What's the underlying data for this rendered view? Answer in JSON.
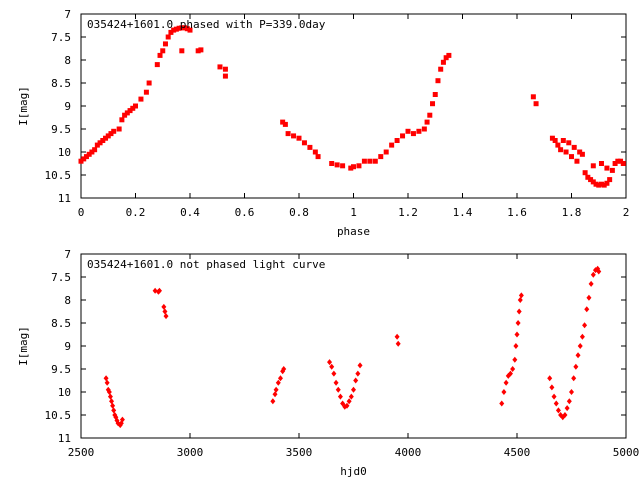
{
  "chart_data": [
    {
      "type": "scatter",
      "title": "035424+1601.0 phased with P=339.0day",
      "xlabel": "phase",
      "ylabel": "I[mag]",
      "xlim": [
        0,
        2
      ],
      "ylim": [
        7,
        11
      ],
      "y_reversed": true,
      "xticks": [
        "0",
        "0.2",
        "0.4",
        "0.6",
        "0.8",
        "1",
        "1.2",
        "1.4",
        "1.6",
        "1.8",
        "2"
      ],
      "yticks": [
        "7",
        "7.5",
        "8",
        "8.5",
        "9",
        "9.5",
        "10",
        "10.5",
        "11"
      ],
      "grid": false,
      "marker_color": "#ff0000",
      "series": [
        {
          "points": [
            [
              0.0,
              10.2
            ],
            [
              0.01,
              10.15
            ],
            [
              0.02,
              10.1
            ],
            [
              0.03,
              10.05
            ],
            [
              0.04,
              10.0
            ],
            [
              0.05,
              9.95
            ],
            [
              0.06,
              9.85
            ],
            [
              0.07,
              9.8
            ],
            [
              0.08,
              9.75
            ],
            [
              0.09,
              9.7
            ],
            [
              0.1,
              9.65
            ],
            [
              0.11,
              9.6
            ],
            [
              0.12,
              9.55
            ],
            [
              0.14,
              9.5
            ],
            [
              0.15,
              9.3
            ],
            [
              0.16,
              9.2
            ],
            [
              0.17,
              9.15
            ],
            [
              0.18,
              9.1
            ],
            [
              0.19,
              9.05
            ],
            [
              0.2,
              9.0
            ],
            [
              0.22,
              8.85
            ],
            [
              0.24,
              8.7
            ],
            [
              0.25,
              8.5
            ],
            [
              0.28,
              8.1
            ],
            [
              0.29,
              7.9
            ],
            [
              0.3,
              7.8
            ],
            [
              0.31,
              7.65
            ],
            [
              0.32,
              7.5
            ],
            [
              0.33,
              7.4
            ],
            [
              0.34,
              7.35
            ],
            [
              0.35,
              7.33
            ],
            [
              0.36,
              7.31
            ],
            [
              0.37,
              7.3
            ],
            [
              0.38,
              7.3
            ],
            [
              0.39,
              7.32
            ],
            [
              0.4,
              7.35
            ],
            [
              0.37,
              7.8
            ],
            [
              0.43,
              7.8
            ],
            [
              0.44,
              7.78
            ],
            [
              0.51,
              8.15
            ],
            [
              0.53,
              8.2
            ],
            [
              0.53,
              8.35
            ],
            [
              0.74,
              9.35
            ],
            [
              0.75,
              9.4
            ],
            [
              0.76,
              9.6
            ],
            [
              0.78,
              9.65
            ],
            [
              0.8,
              9.7
            ],
            [
              0.82,
              9.8
            ],
            [
              0.84,
              9.9
            ],
            [
              0.86,
              10.0
            ],
            [
              0.87,
              10.1
            ],
            [
              0.92,
              10.25
            ],
            [
              0.94,
              10.28
            ],
            [
              0.96,
              10.3
            ],
            [
              0.99,
              10.35
            ],
            [
              1.0,
              10.32
            ],
            [
              1.02,
              10.3
            ],
            [
              1.04,
              10.2
            ],
            [
              1.06,
              10.2
            ],
            [
              1.08,
              10.2
            ],
            [
              1.1,
              10.1
            ],
            [
              1.12,
              10.0
            ],
            [
              1.14,
              9.85
            ],
            [
              1.16,
              9.75
            ],
            [
              1.18,
              9.65
            ],
            [
              1.2,
              9.55
            ],
            [
              1.22,
              9.6
            ],
            [
              1.24,
              9.55
            ],
            [
              1.26,
              9.5
            ],
            [
              1.27,
              9.35
            ],
            [
              1.28,
              9.2
            ],
            [
              1.29,
              8.95
            ],
            [
              1.3,
              8.75
            ],
            [
              1.31,
              8.45
            ],
            [
              1.32,
              8.2
            ],
            [
              1.33,
              8.05
            ],
            [
              1.34,
              7.95
            ],
            [
              1.35,
              7.9
            ],
            [
              1.66,
              8.8
            ],
            [
              1.67,
              8.95
            ],
            [
              1.73,
              9.7
            ],
            [
              1.74,
              9.75
            ],
            [
              1.75,
              9.85
            ],
            [
              1.76,
              9.95
            ],
            [
              1.77,
              9.75
            ],
            [
              1.78,
              10.0
            ],
            [
              1.79,
              9.8
            ],
            [
              1.8,
              10.1
            ],
            [
              1.81,
              9.9
            ],
            [
              1.82,
              10.2
            ],
            [
              1.83,
              10.0
            ],
            [
              1.84,
              10.05
            ],
            [
              1.85,
              10.45
            ],
            [
              1.86,
              10.55
            ],
            [
              1.87,
              10.6
            ],
            [
              1.88,
              10.65
            ],
            [
              1.89,
              10.7
            ],
            [
              1.9,
              10.72
            ],
            [
              1.91,
              10.7
            ],
            [
              1.92,
              10.72
            ],
            [
              1.93,
              10.68
            ],
            [
              1.94,
              10.6
            ],
            [
              1.95,
              10.4
            ],
            [
              1.96,
              10.25
            ],
            [
              1.97,
              10.2
            ],
            [
              1.98,
              10.2
            ],
            [
              1.99,
              10.25
            ],
            [
              1.93,
              10.35
            ],
            [
              1.88,
              10.3
            ],
            [
              1.91,
              10.25
            ]
          ]
        }
      ]
    },
    {
      "type": "scatter",
      "title": "035424+1601.0 not phased light curve",
      "xlabel": "hjd0",
      "ylabel": "I[mag]",
      "xlim": [
        2500,
        5000
      ],
      "ylim": [
        7,
        11
      ],
      "y_reversed": true,
      "xticks": [
        "2500",
        "3000",
        "3500",
        "4000",
        "4500",
        "5000"
      ],
      "yticks": [
        "7",
        "7.5",
        "8",
        "8.5",
        "9",
        "9.5",
        "10",
        "10.5",
        "11"
      ],
      "grid": false,
      "marker_color": "#ff0000",
      "series": [
        {
          "points": [
            [
              2615,
              9.7
            ],
            [
              2620,
              9.8
            ],
            [
              2625,
              9.95
            ],
            [
              2630,
              10.0
            ],
            [
              2635,
              10.1
            ],
            [
              2640,
              10.2
            ],
            [
              2645,
              10.3
            ],
            [
              2650,
              10.4
            ],
            [
              2655,
              10.5
            ],
            [
              2660,
              10.55
            ],
            [
              2665,
              10.62
            ],
            [
              2670,
              10.68
            ],
            [
              2680,
              10.72
            ],
            [
              2685,
              10.68
            ],
            [
              2690,
              10.6
            ],
            [
              2840,
              7.8
            ],
            [
              2855,
              7.82
            ],
            [
              2860,
              7.8
            ],
            [
              2880,
              8.15
            ],
            [
              2885,
              8.25
            ],
            [
              2890,
              8.35
            ],
            [
              3380,
              10.2
            ],
            [
              3390,
              10.05
            ],
            [
              3395,
              9.95
            ],
            [
              3405,
              9.8
            ],
            [
              3415,
              9.7
            ],
            [
              3425,
              9.55
            ],
            [
              3430,
              9.5
            ],
            [
              3640,
              9.35
            ],
            [
              3650,
              9.45
            ],
            [
              3660,
              9.6
            ],
            [
              3670,
              9.8
            ],
            [
              3680,
              9.95
            ],
            [
              3690,
              10.1
            ],
            [
              3700,
              10.25
            ],
            [
              3710,
              10.32
            ],
            [
              3720,
              10.3
            ],
            [
              3730,
              10.2
            ],
            [
              3740,
              10.1
            ],
            [
              3750,
              9.95
            ],
            [
              3760,
              9.75
            ],
            [
              3770,
              9.6
            ],
            [
              3780,
              9.42
            ],
            [
              3950,
              8.8
            ],
            [
              3955,
              8.95
            ],
            [
              4430,
              10.25
            ],
            [
              4440,
              10.0
            ],
            [
              4450,
              9.8
            ],
            [
              4460,
              9.65
            ],
            [
              4470,
              9.6
            ],
            [
              4480,
              9.5
            ],
            [
              4490,
              9.3
            ],
            [
              4495,
              9.0
            ],
            [
              4500,
              8.75
            ],
            [
              4505,
              8.5
            ],
            [
              4510,
              8.25
            ],
            [
              4515,
              8.0
            ],
            [
              4520,
              7.9
            ],
            [
              4650,
              9.7
            ],
            [
              4660,
              9.9
            ],
            [
              4670,
              10.1
            ],
            [
              4680,
              10.25
            ],
            [
              4690,
              10.4
            ],
            [
              4700,
              10.5
            ],
            [
              4710,
              10.55
            ],
            [
              4720,
              10.5
            ],
            [
              4730,
              10.35
            ],
            [
              4740,
              10.2
            ],
            [
              4750,
              10.0
            ],
            [
              4760,
              9.7
            ],
            [
              4770,
              9.45
            ],
            [
              4780,
              9.2
            ],
            [
              4790,
              9.0
            ],
            [
              4800,
              8.8
            ],
            [
              4810,
              8.55
            ],
            [
              4820,
              8.2
            ],
            [
              4830,
              7.95
            ],
            [
              4840,
              7.65
            ],
            [
              4850,
              7.45
            ],
            [
              4860,
              7.35
            ],
            [
              4870,
              7.32
            ],
            [
              4875,
              7.38
            ]
          ]
        }
      ]
    }
  ]
}
